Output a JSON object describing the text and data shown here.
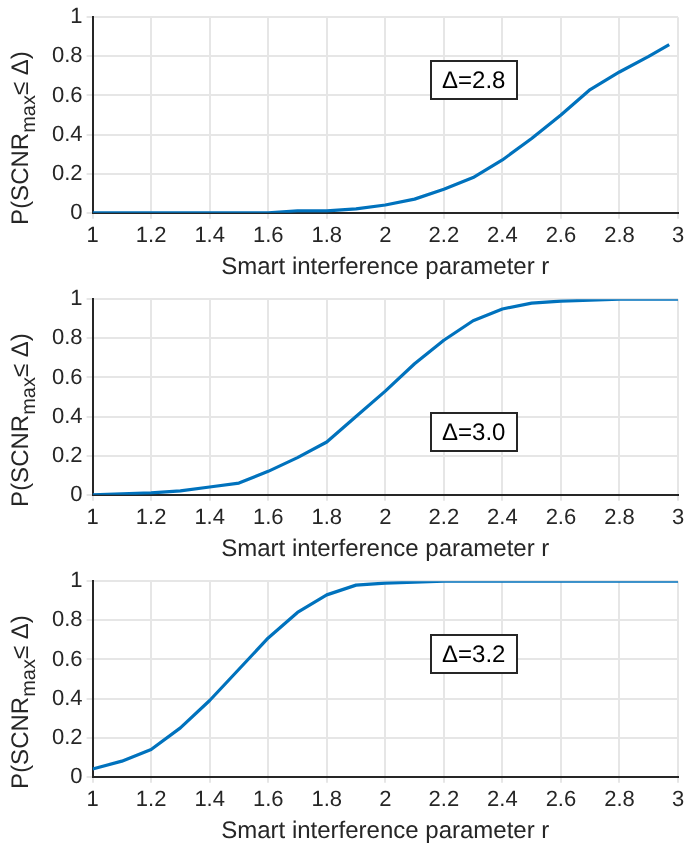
{
  "chart_data": [
    {
      "type": "line",
      "xlabel": "Smart interference parameter r",
      "ylabel": "P(SCNR$_{max}$≤ Δ)",
      "annotations": [
        "Δ=2.8"
      ],
      "grid": true,
      "legend": false,
      "marker": "none",
      "line_style": "solid",
      "xlim": [
        1,
        3
      ],
      "ylim": [
        0,
        1
      ],
      "xticks": [
        1,
        1.2,
        1.4,
        1.6,
        1.8,
        2,
        2.2,
        2.4,
        2.6,
        2.8,
        3
      ],
      "yticks": [
        0,
        0.2,
        0.4,
        0.6,
        0.8,
        1
      ],
      "series": [
        {
          "color": "#0072bd",
          "x": [
            1,
            1.2,
            1.4,
            1.6,
            1.7,
            1.8,
            1.9,
            2.0,
            2.1,
            2.2,
            2.3,
            2.4,
            2.5,
            2.6,
            2.7,
            2.8,
            2.9,
            2.97
          ],
          "values": [
            0,
            0,
            0,
            0,
            0.01,
            0.01,
            0.02,
            0.04,
            0.07,
            0.12,
            0.18,
            0.27,
            0.38,
            0.5,
            0.63,
            0.72,
            0.8,
            0.86
          ]
        }
      ]
    },
    {
      "type": "line",
      "xlabel": "Smart interference parameter r",
      "ylabel": "P(SCNR$_{max}$≤ Δ)",
      "annotations": [
        "Δ=3.0"
      ],
      "grid": true,
      "legend": false,
      "marker": "none",
      "line_style": "solid",
      "xlim": [
        1,
        3
      ],
      "ylim": [
        0,
        1
      ],
      "xticks": [
        1,
        1.2,
        1.4,
        1.6,
        1.8,
        2,
        2.2,
        2.4,
        2.6,
        2.8,
        3
      ],
      "yticks": [
        0,
        0.2,
        0.4,
        0.6,
        0.8,
        1
      ],
      "series": [
        {
          "color": "#0072bd",
          "x": [
            1,
            1.2,
            1.3,
            1.4,
            1.5,
            1.6,
            1.7,
            1.8,
            1.9,
            2.0,
            2.1,
            2.2,
            2.3,
            2.4,
            2.5,
            2.6,
            2.8,
            3
          ],
          "values": [
            0,
            0.01,
            0.02,
            0.04,
            0.06,
            0.12,
            0.19,
            0.27,
            0.4,
            0.53,
            0.67,
            0.79,
            0.89,
            0.95,
            0.98,
            0.99,
            1,
            1
          ]
        }
      ]
    },
    {
      "type": "line",
      "xlabel": "Smart interference parameter r",
      "ylabel": "P(SCNR$_{max}$≤ Δ)",
      "annotations": [
        "Δ=3.2"
      ],
      "grid": true,
      "legend": false,
      "marker": "none",
      "line_style": "solid",
      "xlim": [
        1,
        3
      ],
      "ylim": [
        0,
        1
      ],
      "xticks": [
        1,
        1.2,
        1.4,
        1.6,
        1.8,
        2,
        2.2,
        2.4,
        2.6,
        2.8,
        3
      ],
      "yticks": [
        0,
        0.2,
        0.4,
        0.6,
        0.8,
        1
      ],
      "series": [
        {
          "color": "#0072bd",
          "x": [
            1,
            1.1,
            1.2,
            1.3,
            1.4,
            1.5,
            1.6,
            1.7,
            1.8,
            1.9,
            2.0,
            2.2,
            3
          ],
          "values": [
            0.04,
            0.08,
            0.14,
            0.25,
            0.39,
            0.55,
            0.71,
            0.84,
            0.93,
            0.98,
            0.99,
            1,
            1
          ]
        }
      ]
    }
  ]
}
